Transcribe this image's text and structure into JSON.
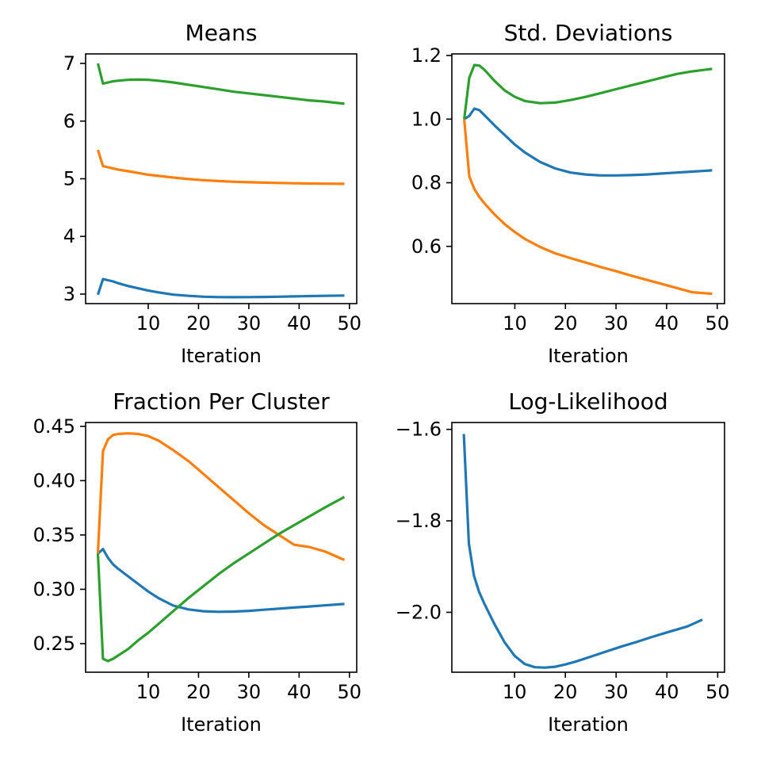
{
  "chart_data": [
    {
      "type": "line",
      "title": "Means",
      "xlabel": "Iteration",
      "ylabel": "",
      "xlim": [
        -2.45,
        51.45
      ],
      "ylim": [
        2.835,
        7.165
      ],
      "xticks": [
        10,
        20,
        30,
        40,
        50
      ],
      "yticks": [
        3,
        4,
        5,
        6,
        7
      ],
      "grid": false,
      "series": [
        {
          "color": "#1f77b4",
          "x": [
            0,
            1,
            2,
            3,
            4,
            6,
            8,
            10,
            12,
            15,
            18,
            21,
            24,
            27,
            30,
            33,
            36,
            39,
            42,
            45,
            49
          ],
          "y": [
            2.99,
            3.26,
            3.24,
            3.22,
            3.19,
            3.14,
            3.1,
            3.06,
            3.03,
            2.99,
            2.97,
            2.955,
            2.948,
            2.946,
            2.948,
            2.951,
            2.955,
            2.96,
            2.965,
            2.97,
            2.975
          ]
        },
        {
          "color": "#ff7f0e",
          "x": [
            0,
            1,
            2,
            3,
            4,
            6,
            8,
            10,
            12,
            15,
            18,
            21,
            24,
            27,
            30,
            33,
            36,
            39,
            42,
            45,
            49
          ],
          "y": [
            5.5,
            5.22,
            5.2,
            5.18,
            5.16,
            5.13,
            5.1,
            5.07,
            5.05,
            5.02,
            4.995,
            4.975,
            4.96,
            4.948,
            4.94,
            4.933,
            4.927,
            4.922,
            4.918,
            4.915,
            4.912
          ]
        },
        {
          "color": "#2ca02c",
          "x": [
            0,
            1,
            2,
            3,
            4,
            6,
            8,
            10,
            12,
            15,
            18,
            21,
            24,
            27,
            30,
            33,
            36,
            39,
            42,
            45,
            49
          ],
          "y": [
            7.0,
            6.65,
            6.67,
            6.69,
            6.7,
            6.715,
            6.72,
            6.715,
            6.7,
            6.67,
            6.63,
            6.59,
            6.55,
            6.51,
            6.48,
            6.45,
            6.42,
            6.39,
            6.36,
            6.34,
            6.3
          ]
        }
      ]
    },
    {
      "type": "line",
      "title": "Std. Deviations",
      "xlabel": "Iteration",
      "ylabel": "",
      "xlim": [
        -2.45,
        51.45
      ],
      "ylim": [
        0.42,
        1.205
      ],
      "xticks": [
        10,
        20,
        30,
        40,
        50
      ],
      "yticks": [
        0.6,
        0.8,
        1.0,
        1.2
      ],
      "ytick_labels": [
        "0.6",
        "0.8",
        "1.0",
        "1.2"
      ],
      "grid": false,
      "series": [
        {
          "color": "#1f77b4",
          "x": [
            0,
            1,
            2,
            3,
            4,
            6,
            8,
            10,
            12,
            15,
            18,
            21,
            24,
            27,
            30,
            33,
            36,
            39,
            42,
            45,
            49
          ],
          "y": [
            1.0,
            1.01,
            1.033,
            1.028,
            1.012,
            0.98,
            0.95,
            0.92,
            0.895,
            0.865,
            0.845,
            0.832,
            0.826,
            0.823,
            0.823,
            0.824,
            0.826,
            0.829,
            0.832,
            0.835,
            0.839
          ]
        },
        {
          "color": "#ff7f0e",
          "x": [
            0,
            1,
            2,
            3,
            4,
            6,
            8,
            10,
            12,
            15,
            18,
            21,
            24,
            27,
            30,
            33,
            36,
            39,
            42,
            45,
            49
          ],
          "y": [
            1.0,
            0.82,
            0.78,
            0.755,
            0.735,
            0.7,
            0.67,
            0.645,
            0.623,
            0.598,
            0.578,
            0.563,
            0.549,
            0.535,
            0.522,
            0.508,
            0.495,
            0.482,
            0.469,
            0.456,
            0.451
          ]
        },
        {
          "color": "#2ca02c",
          "x": [
            0,
            1,
            2,
            3,
            4,
            6,
            8,
            10,
            12,
            15,
            18,
            21,
            24,
            27,
            30,
            33,
            36,
            39,
            42,
            45,
            49
          ],
          "y": [
            1.0,
            1.13,
            1.17,
            1.168,
            1.155,
            1.12,
            1.09,
            1.07,
            1.057,
            1.05,
            1.052,
            1.06,
            1.07,
            1.082,
            1.094,
            1.106,
            1.118,
            1.13,
            1.142,
            1.15,
            1.158
          ]
        }
      ]
    },
    {
      "type": "line",
      "title": "Fraction Per Cluster",
      "xlabel": "Iteration",
      "ylabel": "",
      "xlim": [
        -2.45,
        51.45
      ],
      "ylim": [
        0.2237,
        0.4535
      ],
      "xticks": [
        10,
        20,
        30,
        40,
        50
      ],
      "yticks": [
        0.25,
        0.3,
        0.35,
        0.4,
        0.45
      ],
      "ytick_labels": [
        "0.25",
        "0.30",
        "0.35",
        "0.40",
        "0.45"
      ],
      "grid": false,
      "series": [
        {
          "color": "#1f77b4",
          "x": [
            0,
            1,
            2,
            3,
            4,
            6,
            8,
            10,
            12,
            15,
            18,
            21,
            24,
            27,
            30,
            33,
            36,
            39,
            42,
            45,
            49
          ],
          "y": [
            0.333,
            0.337,
            0.329,
            0.323,
            0.319,
            0.312,
            0.305,
            0.298,
            0.292,
            0.285,
            0.2815,
            0.2798,
            0.2793,
            0.2795,
            0.2802,
            0.2812,
            0.2822,
            0.2832,
            0.2842,
            0.2852,
            0.2865
          ]
        },
        {
          "color": "#ff7f0e",
          "x": [
            0,
            1,
            2,
            3,
            4,
            6,
            8,
            10,
            12,
            15,
            18,
            21,
            24,
            27,
            30,
            33,
            36,
            39,
            42,
            45,
            49
          ],
          "y": [
            0.333,
            0.427,
            0.438,
            0.442,
            0.443,
            0.4435,
            0.443,
            0.441,
            0.437,
            0.428,
            0.418,
            0.406,
            0.394,
            0.382,
            0.37,
            0.359,
            0.35,
            0.341,
            0.339,
            0.335,
            0.327
          ]
        },
        {
          "color": "#2ca02c",
          "x": [
            0,
            1,
            2,
            3,
            4,
            6,
            8,
            10,
            12,
            15,
            18,
            21,
            24,
            27,
            30,
            33,
            36,
            39,
            42,
            45,
            49
          ],
          "y": [
            0.333,
            0.236,
            0.234,
            0.236,
            0.239,
            0.245,
            0.253,
            0.26,
            0.268,
            0.28,
            0.292,
            0.303,
            0.314,
            0.324,
            0.333,
            0.342,
            0.351,
            0.359,
            0.367,
            0.375,
            0.385
          ]
        }
      ]
    },
    {
      "type": "line",
      "title": "Log-Likelihood",
      "xlabel": "Iteration",
      "ylabel": "",
      "xlim": [
        -2.35,
        51.35
      ],
      "ylim": [
        -2.131,
        -1.585
      ],
      "xticks": [
        10,
        20,
        30,
        40,
        50
      ],
      "yticks": [
        -2.0,
        -1.8,
        -1.6
      ],
      "ytick_labels": [
        "−2.0",
        "−1.8",
        "−1.6"
      ],
      "grid": false,
      "series": [
        {
          "color": "#1f77b4",
          "x": [
            0,
            1,
            2,
            3,
            4,
            6,
            8,
            10,
            12,
            14,
            16,
            18,
            20,
            22,
            25,
            28,
            31,
            34,
            37,
            40,
            44,
            47
          ],
          "y": [
            -1.61,
            -1.85,
            -1.92,
            -1.955,
            -1.98,
            -2.025,
            -2.065,
            -2.095,
            -2.113,
            -2.12,
            -2.121,
            -2.119,
            -2.114,
            -2.108,
            -2.097,
            -2.086,
            -2.075,
            -2.065,
            -2.054,
            -2.044,
            -2.031,
            -2.016
          ]
        }
      ]
    }
  ]
}
